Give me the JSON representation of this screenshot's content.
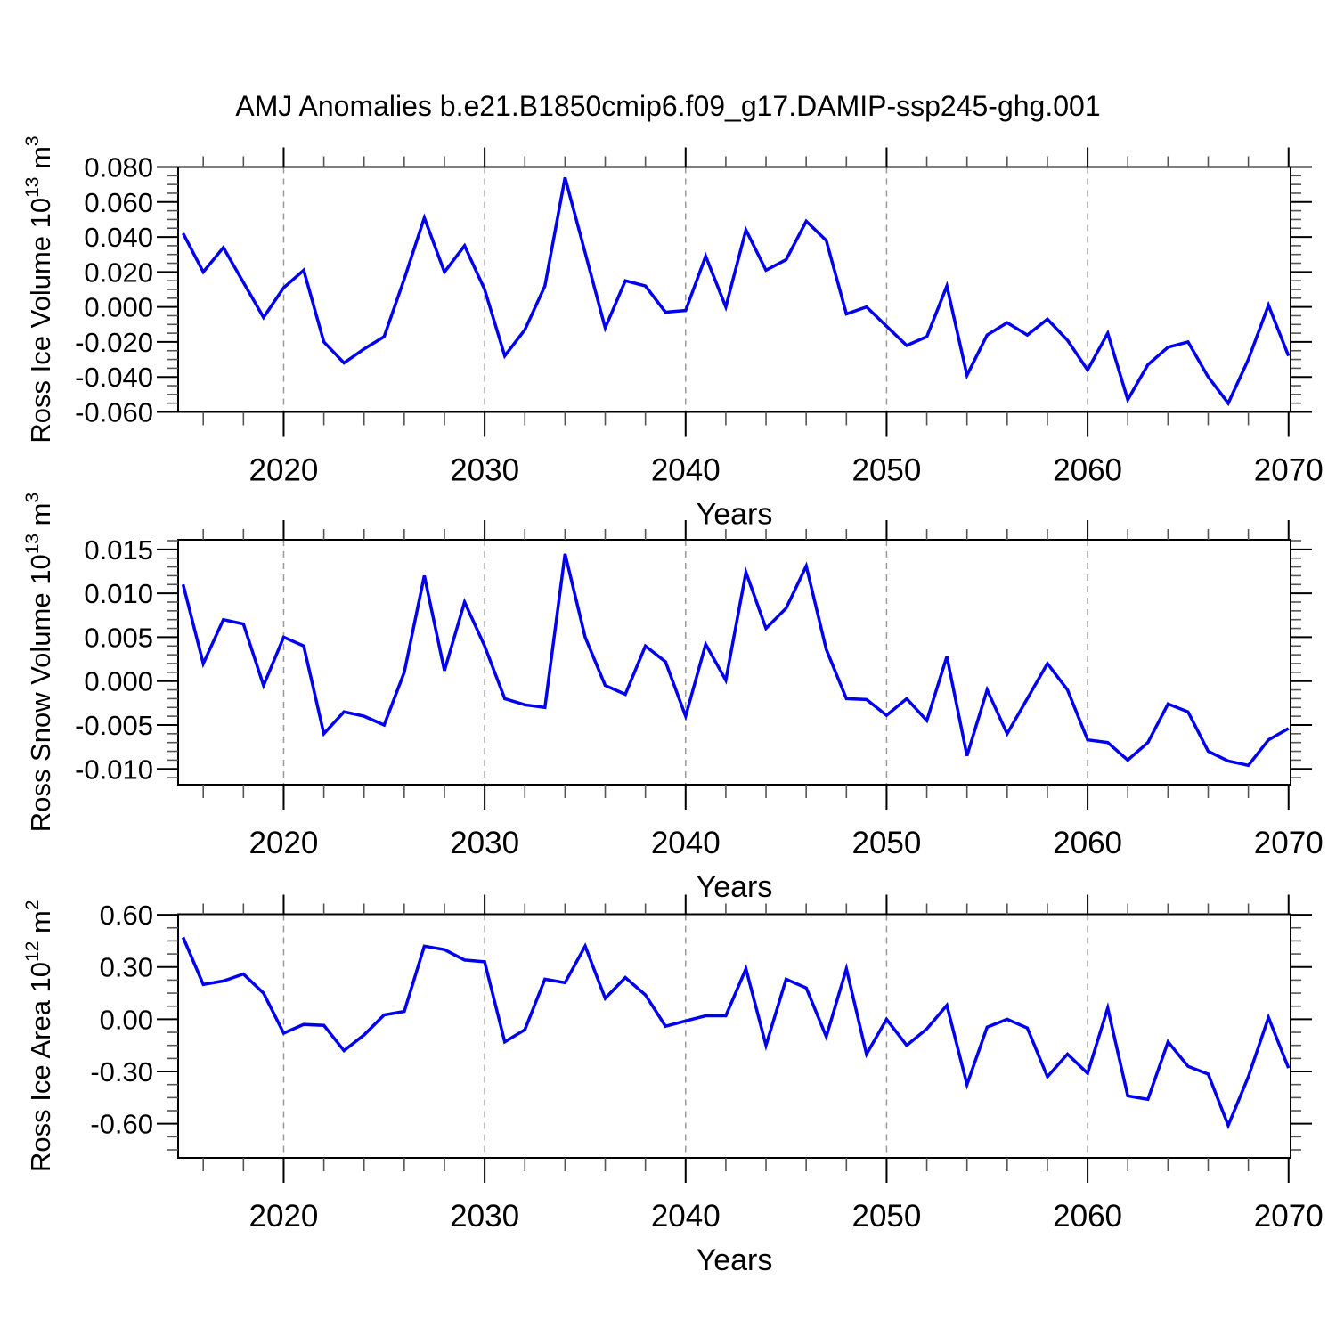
{
  "title": "AMJ Anomalies b.e21.B1850cmip6.f09_g17.DAMIP-ssp245-ghg.001",
  "colors": {
    "line": "#0000f0",
    "grid": "#9a9a9a",
    "axis": "#000000",
    "minor_tick": "#555555",
    "background": "#ffffff"
  },
  "x_axis": {
    "label": "Years",
    "range": [
      2014.75,
      2070.1
    ],
    "major_ticks": [
      2020,
      2030,
      2040,
      2050,
      2060,
      2070
    ],
    "minor_step": 2,
    "gridline_years": [
      2020,
      2030,
      2040,
      2050,
      2060
    ],
    "years_start": 2015
  },
  "chart_data": [
    {
      "type": "line",
      "title": "",
      "ylabel": "Ross Ice Volume 10^13 m^3",
      "ylabel_parts": [
        {
          "t": "Ross Ice Volume 10"
        },
        {
          "t": "13",
          "sup": true
        },
        {
          "t": " m"
        },
        {
          "t": "3",
          "sup": true
        }
      ],
      "ylim": [
        -0.06,
        0.08
      ],
      "yticks": [
        {
          "value": 0.08,
          "label": "0.080"
        },
        {
          "value": 0.06,
          "label": "0.060"
        },
        {
          "value": 0.04,
          "label": "0.040"
        },
        {
          "value": 0.02,
          "label": "0.020"
        },
        {
          "value": 0.0,
          "label": "0.000"
        },
        {
          "value": -0.02,
          "label": "-0.020"
        },
        {
          "value": -0.04,
          "label": "-0.040"
        },
        {
          "value": -0.06,
          "label": "-0.060"
        }
      ],
      "ytick_minor_step": 0.005,
      "x_start": 2015,
      "values": [
        0.042,
        0.02,
        0.034,
        0.014,
        -0.006,
        0.011,
        0.021,
        -0.02,
        -0.032,
        -0.024,
        -0.017,
        0.016,
        0.051,
        0.02,
        0.035,
        0.01,
        -0.028,
        -0.013,
        0.012,
        0.074,
        0.031,
        -0.012,
        0.015,
        0.012,
        -0.003,
        -0.002,
        0.029,
        0.0,
        0.044,
        0.021,
        0.027,
        0.049,
        0.038,
        -0.004,
        0.0,
        -0.011,
        -0.022,
        -0.017,
        0.012,
        -0.039,
        -0.016,
        -0.009,
        -0.016,
        -0.007,
        -0.019,
        -0.036,
        -0.015,
        -0.053,
        -0.033,
        -0.023,
        -0.02,
        -0.04,
        -0.055,
        -0.03,
        0.001,
        -0.028
      ]
    },
    {
      "type": "line",
      "title": "",
      "ylabel": "Ross Snow Volume 10^13 m^3",
      "ylabel_parts": [
        {
          "t": "Ross Snow Volume 10"
        },
        {
          "t": "13",
          "sup": true
        },
        {
          "t": " m"
        },
        {
          "t": "3",
          "sup": true
        }
      ],
      "ylim": [
        -0.0118,
        0.0161
      ],
      "yticks": [
        {
          "value": 0.015,
          "label": "0.015"
        },
        {
          "value": 0.01,
          "label": "0.010"
        },
        {
          "value": 0.005,
          "label": "0.005"
        },
        {
          "value": 0.0,
          "label": "0.000"
        },
        {
          "value": -0.005,
          "label": "-0.005"
        },
        {
          "value": -0.01,
          "label": "-0.010"
        }
      ],
      "ytick_minor_step": 0.001,
      "x_start": 2015,
      "values": [
        0.011,
        0.002,
        0.007,
        0.0065,
        -0.0005,
        0.005,
        0.004,
        -0.006,
        -0.0035,
        -0.004,
        -0.005,
        0.001,
        0.012,
        0.0012,
        0.009,
        0.004,
        -0.002,
        -0.0027,
        -0.003,
        0.0145,
        0.005,
        -0.0005,
        -0.0015,
        0.004,
        0.0022,
        -0.004,
        0.0042,
        0.0001,
        0.0124,
        0.006,
        0.0083,
        0.0131,
        0.0036,
        -0.002,
        -0.0021,
        -0.0039,
        -0.002,
        -0.0045,
        0.0028,
        -0.0085,
        -0.001,
        -0.006,
        -0.002,
        0.002,
        -0.001,
        -0.0067,
        -0.007,
        -0.009,
        -0.007,
        -0.0026,
        -0.0035,
        -0.008,
        -0.0091,
        -0.0096,
        -0.0067,
        -0.0054
      ]
    },
    {
      "type": "line",
      "title": "",
      "ylabel": "Ross Ice Area 10^12 m^2",
      "ylabel_parts": [
        {
          "t": "Ross Ice Area 10"
        },
        {
          "t": "12",
          "sup": true
        },
        {
          "t": " m"
        },
        {
          "t": "2",
          "sup": true
        }
      ],
      "ylim": [
        -0.796,
        0.603
      ],
      "yticks": [
        {
          "value": 0.6,
          "label": "0.60"
        },
        {
          "value": 0.3,
          "label": "0.30"
        },
        {
          "value": 0.0,
          "label": "0.00"
        },
        {
          "value": -0.3,
          "label": "-0.30"
        },
        {
          "value": -0.6,
          "label": "-0.60"
        }
      ],
      "ytick_minor_step": 0.075,
      "x_start": 2015,
      "values": [
        0.47,
        0.2,
        0.22,
        0.26,
        0.15,
        -0.08,
        -0.03,
        -0.035,
        -0.18,
        -0.09,
        0.025,
        0.045,
        0.42,
        0.4,
        0.34,
        0.33,
        -0.13,
        -0.06,
        0.23,
        0.21,
        0.42,
        0.12,
        0.24,
        0.14,
        -0.04,
        -0.01,
        0.02,
        0.02,
        0.29,
        -0.15,
        0.23,
        0.18,
        -0.1,
        0.29,
        -0.2,
        0.0,
        -0.15,
        -0.055,
        0.08,
        -0.375,
        -0.045,
        0.0,
        -0.05,
        -0.33,
        -0.2,
        -0.31,
        0.065,
        -0.44,
        -0.46,
        -0.13,
        -0.27,
        -0.315,
        -0.61,
        -0.33,
        0.01,
        -0.28
      ]
    }
  ]
}
